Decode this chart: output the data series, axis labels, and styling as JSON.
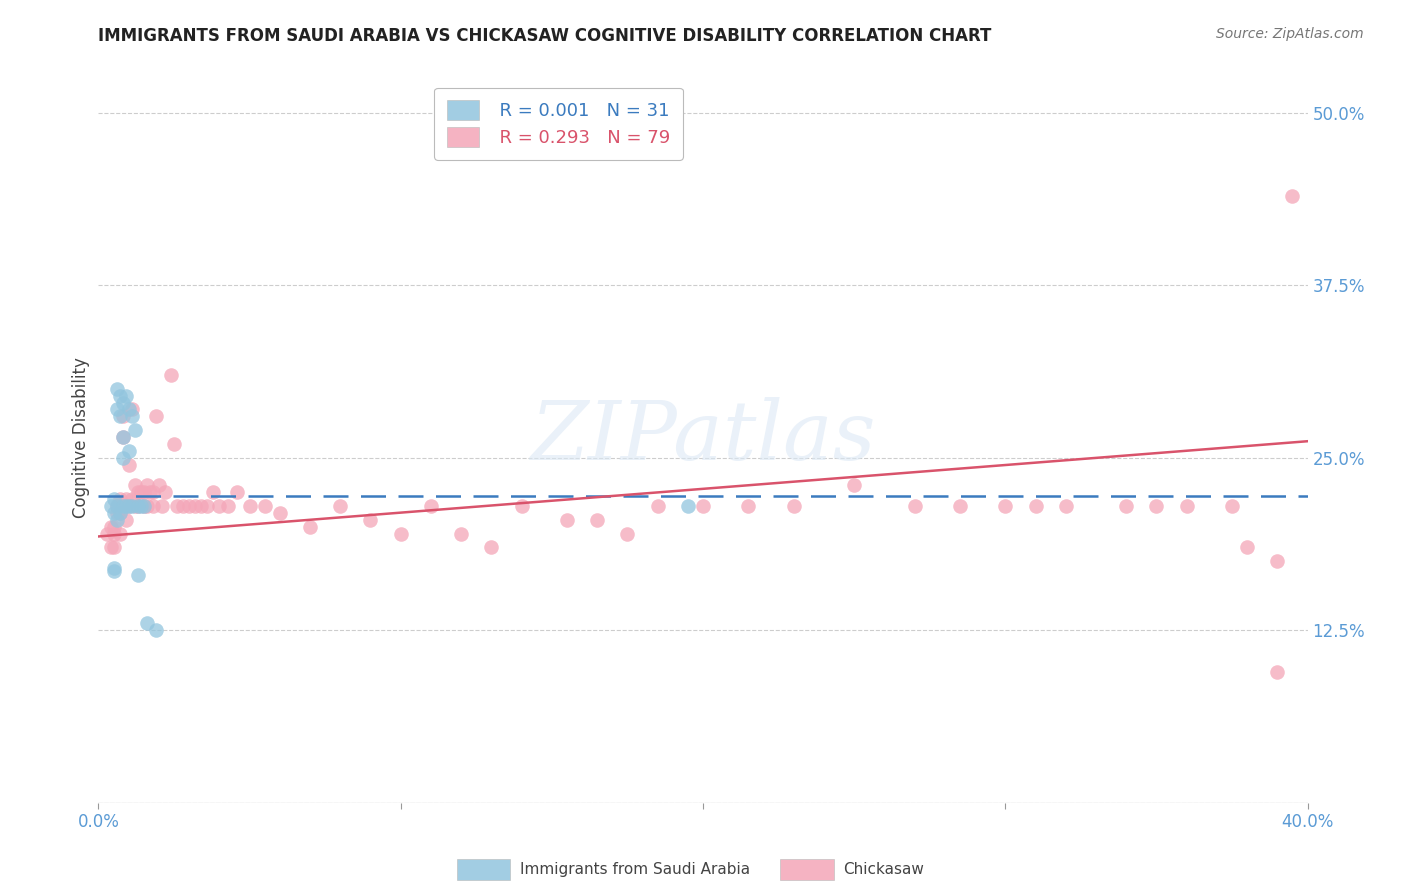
{
  "title": "IMMIGRANTS FROM SAUDI ARABIA VS CHICKASAW COGNITIVE DISABILITY CORRELATION CHART",
  "source": "Source: ZipAtlas.com",
  "ylabel": "Cognitive Disability",
  "watermark": "ZIPatlas",
  "legend_blue_r": "R = 0.001",
  "legend_blue_n": "N = 31",
  "legend_pink_r": "R = 0.293",
  "legend_pink_n": "N = 79",
  "legend_blue_label": "Immigrants from Saudi Arabia",
  "legend_pink_label": "Chickasaw",
  "blue_color": "#92c5de",
  "pink_color": "#f4a6b8",
  "blue_line_color": "#3b7bbf",
  "pink_line_color": "#d9536b",
  "axis_label_color": "#5b9bd5",
  "grid_color": "#c8c8c8",
  "blue_scatter_x": [
    0.004,
    0.005,
    0.005,
    0.005,
    0.005,
    0.006,
    0.006,
    0.006,
    0.006,
    0.007,
    0.007,
    0.007,
    0.008,
    0.008,
    0.008,
    0.008,
    0.009,
    0.009,
    0.01,
    0.01,
    0.01,
    0.011,
    0.011,
    0.012,
    0.013,
    0.013,
    0.014,
    0.015,
    0.016,
    0.019,
    0.195
  ],
  "blue_scatter_y": [
    0.215,
    0.22,
    0.21,
    0.17,
    0.168,
    0.3,
    0.285,
    0.215,
    0.205,
    0.295,
    0.28,
    0.21,
    0.29,
    0.265,
    0.25,
    0.215,
    0.295,
    0.215,
    0.285,
    0.255,
    0.215,
    0.28,
    0.215,
    0.27,
    0.215,
    0.165,
    0.215,
    0.215,
    0.13,
    0.125,
    0.215
  ],
  "pink_scatter_x": [
    0.003,
    0.004,
    0.004,
    0.005,
    0.005,
    0.005,
    0.006,
    0.006,
    0.007,
    0.007,
    0.007,
    0.008,
    0.008,
    0.009,
    0.009,
    0.01,
    0.01,
    0.011,
    0.011,
    0.012,
    0.012,
    0.013,
    0.013,
    0.014,
    0.015,
    0.015,
    0.016,
    0.016,
    0.017,
    0.018,
    0.018,
    0.019,
    0.02,
    0.021,
    0.022,
    0.024,
    0.025,
    0.026,
    0.028,
    0.03,
    0.032,
    0.034,
    0.036,
    0.038,
    0.04,
    0.043,
    0.046,
    0.05,
    0.055,
    0.06,
    0.07,
    0.08,
    0.09,
    0.1,
    0.11,
    0.12,
    0.13,
    0.14,
    0.155,
    0.165,
    0.175,
    0.185,
    0.2,
    0.215,
    0.23,
    0.25,
    0.27,
    0.285,
    0.3,
    0.31,
    0.32,
    0.34,
    0.35,
    0.36,
    0.375,
    0.38,
    0.39,
    0.39,
    0.395
  ],
  "pink_scatter_y": [
    0.195,
    0.2,
    0.185,
    0.2,
    0.195,
    0.185,
    0.215,
    0.21,
    0.22,
    0.21,
    0.195,
    0.28,
    0.265,
    0.22,
    0.205,
    0.245,
    0.215,
    0.285,
    0.22,
    0.23,
    0.215,
    0.225,
    0.215,
    0.225,
    0.225,
    0.215,
    0.23,
    0.215,
    0.225,
    0.225,
    0.215,
    0.28,
    0.23,
    0.215,
    0.225,
    0.31,
    0.26,
    0.215,
    0.215,
    0.215,
    0.215,
    0.215,
    0.215,
    0.225,
    0.215,
    0.215,
    0.225,
    0.215,
    0.215,
    0.21,
    0.2,
    0.215,
    0.205,
    0.195,
    0.215,
    0.195,
    0.185,
    0.215,
    0.205,
    0.205,
    0.195,
    0.215,
    0.215,
    0.215,
    0.215,
    0.23,
    0.215,
    0.215,
    0.215,
    0.215,
    0.215,
    0.215,
    0.215,
    0.215,
    0.215,
    0.185,
    0.175,
    0.095,
    0.44
  ],
  "xlim": [
    0.0,
    0.4
  ],
  "ylim": [
    0.0,
    0.53
  ],
  "ytick_positions": [
    0.0,
    0.125,
    0.25,
    0.375,
    0.5
  ],
  "ytick_labels": [
    "",
    "12.5%",
    "25.0%",
    "37.5%",
    "50.0%"
  ],
  "xtick_positions": [
    0.0,
    0.1,
    0.2,
    0.3,
    0.4
  ],
  "xtick_labels": [
    "0.0%",
    "",
    "",
    "",
    "40.0%"
  ],
  "blue_line_x": [
    0.0,
    0.4
  ],
  "blue_line_y": [
    0.222,
    0.222
  ],
  "pink_line_x": [
    0.0,
    0.4
  ],
  "pink_line_y": [
    0.193,
    0.262
  ]
}
